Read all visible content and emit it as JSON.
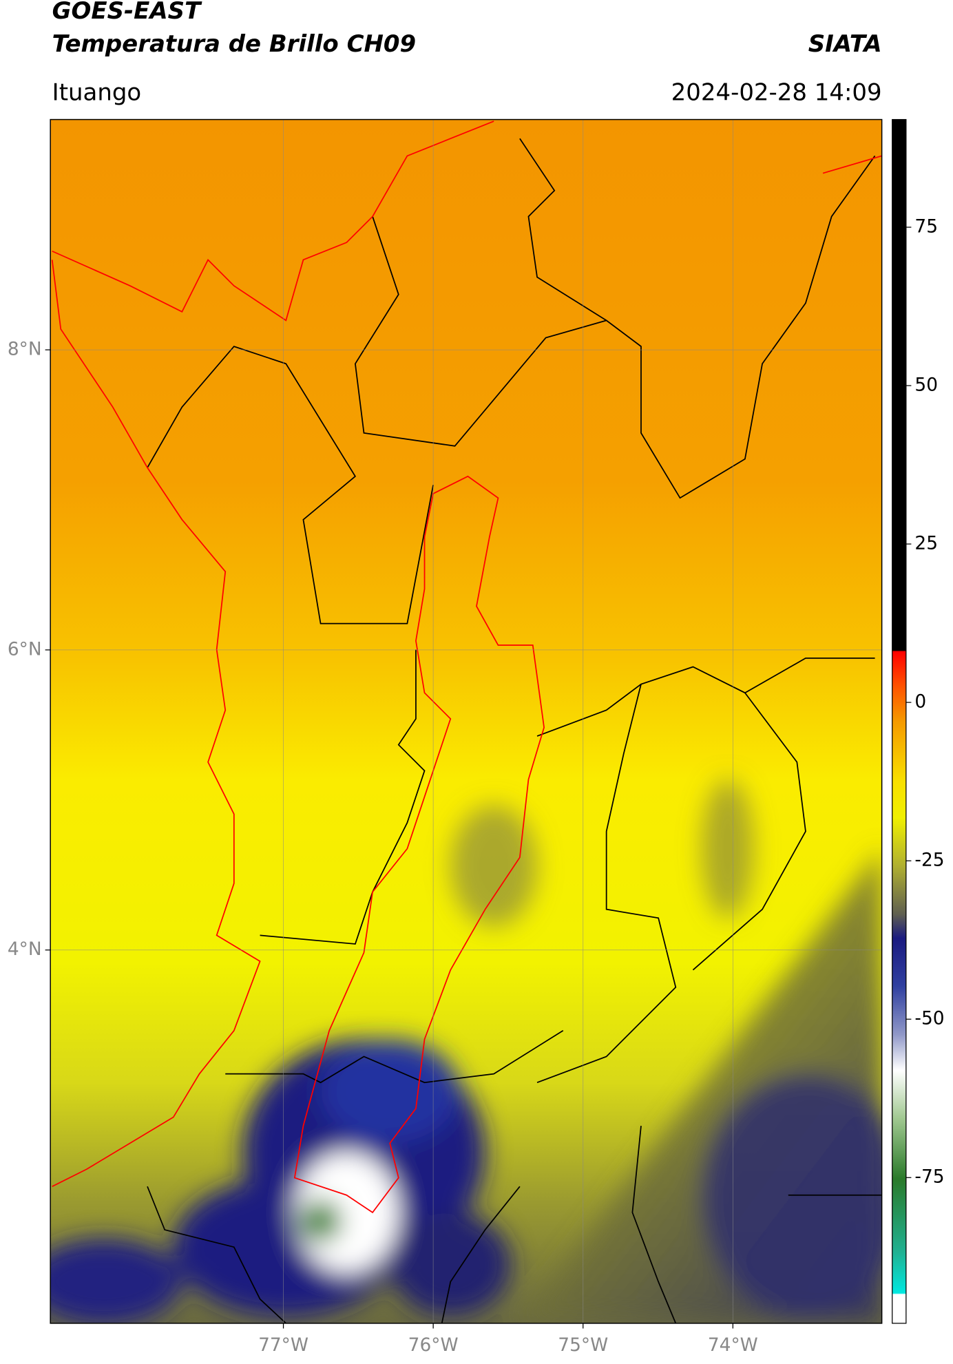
{
  "header": {
    "title": "GOES-EAST",
    "subtitle": "Temperatura de Brillo CH09",
    "org": "SIATA",
    "location": "Ituango",
    "datetime": "2024-02-28 14:09"
  },
  "map": {
    "xlim": [
      -78.555,
      -73.006
    ],
    "ylim": [
      1.512,
      9.535
    ],
    "xticks": [
      {
        "value": -77,
        "label": "77°W"
      },
      {
        "value": -76,
        "label": "76°W"
      },
      {
        "value": -75,
        "label": "75°W"
      },
      {
        "value": -74,
        "label": "74°W"
      }
    ],
    "yticks": [
      {
        "value": 8,
        "label": "8°N"
      },
      {
        "value": 6,
        "label": "6°N"
      },
      {
        "value": 4,
        "label": "4°N"
      }
    ],
    "grid": true
  },
  "colorbar": {
    "lim": [
      -98,
      92
    ],
    "ticks": [
      75,
      50,
      25,
      0,
      -25,
      -50,
      -75
    ]
  }
}
